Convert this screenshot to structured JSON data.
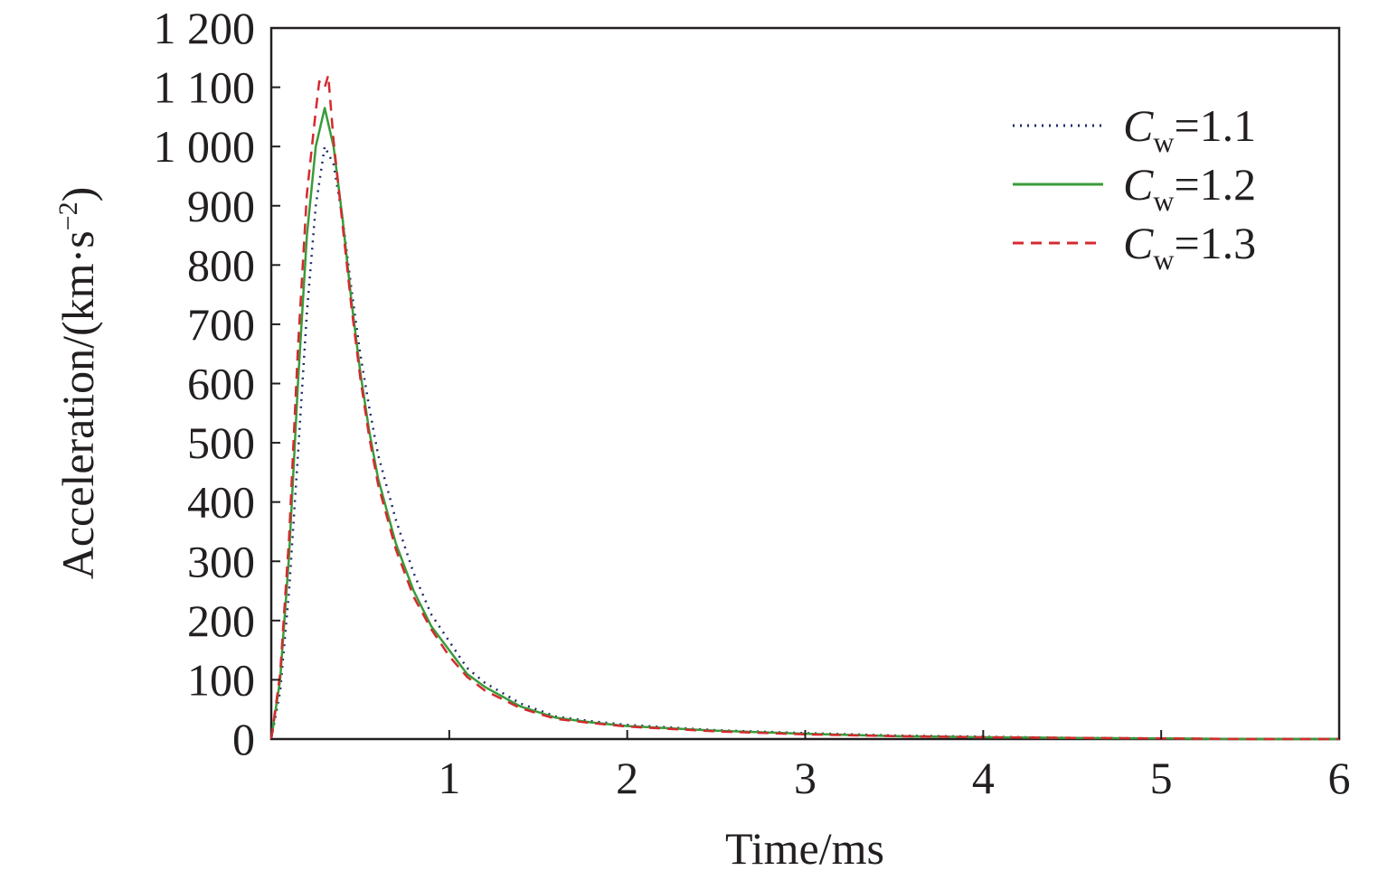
{
  "chart_data": {
    "type": "line",
    "xlabel": "Time/ms",
    "ylabel": "Acceleration/(km·s",
    "ylabel_superscript": "−2",
    "ylabel_close": ")",
    "xlim": [
      0,
      6
    ],
    "ylim": [
      0,
      1200
    ],
    "x_ticks": [
      1,
      2,
      3,
      4,
      5,
      6
    ],
    "x_tick_labels": [
      "1",
      "2",
      "3",
      "4",
      "5",
      "6"
    ],
    "y_ticks": [
      0,
      100,
      200,
      300,
      400,
      500,
      600,
      700,
      800,
      900,
      1000,
      1100,
      1200
    ],
    "y_tick_labels": [
      "0",
      "100",
      "200",
      "300",
      "400",
      "500",
      "600",
      "700",
      "800",
      "900",
      "1 000",
      "1 100",
      "1 200"
    ],
    "grid": false,
    "legend_position": "top-right",
    "series": [
      {
        "name": "Cw=1.1",
        "legend_var": "C",
        "legend_sub": "w",
        "legend_value": "=1.1",
        "color": "#1f2a6b",
        "style": "dotted",
        "x": [
          0,
          0.05,
          0.1,
          0.15,
          0.2,
          0.25,
          0.3,
          0.35,
          0.4,
          0.45,
          0.5,
          0.55,
          0.6,
          0.7,
          0.8,
          0.9,
          1.0,
          1.1,
          1.2,
          1.4,
          1.6,
          1.8,
          2.0,
          2.5,
          3.0,
          3.5,
          4.0,
          4.5,
          5.0,
          5.5,
          6.0
        ],
        "y": [
          0,
          80,
          250,
          480,
          720,
          900,
          1000,
          970,
          880,
          760,
          650,
          560,
          480,
          370,
          280,
          210,
          165,
          120,
          95,
          60,
          38,
          30,
          24,
          15,
          10,
          6,
          4,
          2,
          1,
          0,
          0
        ]
      },
      {
        "name": "Cw=1.2",
        "legend_var": "C",
        "legend_sub": "w",
        "legend_value": "=1.2",
        "color": "#3a9b3a",
        "style": "solid",
        "x": [
          0,
          0.05,
          0.1,
          0.15,
          0.2,
          0.25,
          0.3,
          0.35,
          0.4,
          0.45,
          0.5,
          0.55,
          0.6,
          0.7,
          0.8,
          0.9,
          1.0,
          1.1,
          1.2,
          1.4,
          1.6,
          1.8,
          2.0,
          2.5,
          3.0,
          3.5,
          4.0,
          4.5,
          5.0,
          5.5,
          6.0
        ],
        "y": [
          0,
          100,
          310,
          600,
          850,
          1000,
          1065,
          1000,
          880,
          740,
          620,
          520,
          440,
          330,
          250,
          190,
          150,
          110,
          88,
          55,
          36,
          28,
          22,
          14,
          9,
          5,
          3,
          2,
          1,
          0,
          0
        ]
      },
      {
        "name": "Cw=1.3",
        "legend_var": "C",
        "legend_sub": "w",
        "legend_value": "=1.3",
        "color": "#d42a2f",
        "style": "dashed",
        "x": [
          0,
          0.05,
          0.1,
          0.15,
          0.2,
          0.25,
          0.27,
          0.3,
          0.32,
          0.35,
          0.4,
          0.45,
          0.5,
          0.55,
          0.6,
          0.7,
          0.8,
          0.9,
          1.0,
          1.1,
          1.2,
          1.4,
          1.6,
          1.8,
          2.0,
          2.5,
          3.0,
          3.5,
          4.0,
          4.5,
          5.0,
          5.5,
          6.0
        ],
        "y": [
          0,
          110,
          340,
          660,
          920,
          1060,
          1110,
          1100,
          1120,
          1010,
          870,
          730,
          610,
          510,
          430,
          320,
          240,
          185,
          140,
          105,
          82,
          52,
          34,
          27,
          21,
          13,
          8,
          5,
          3,
          2,
          1,
          0,
          0
        ]
      }
    ]
  }
}
